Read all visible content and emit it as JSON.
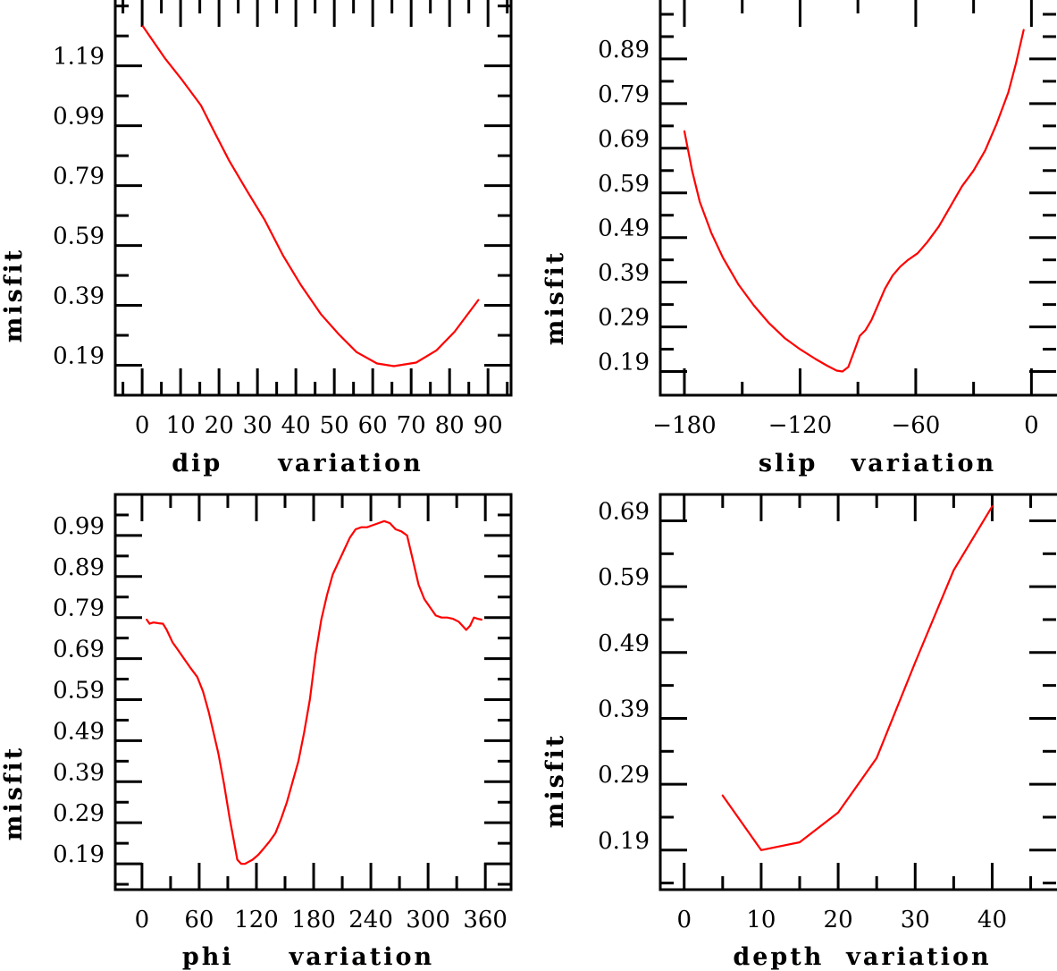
{
  "colors": {
    "series": "#ff0000",
    "axes": "#000000",
    "background": "#ffffff"
  },
  "chart_data": [
    {
      "type": "line",
      "xlabel": "dip     variation",
      "ylabel": "misfit",
      "xlim": [
        -7,
        96
      ],
      "ylim": [
        0.09,
        1.41
      ],
      "xticks": [
        0,
        10,
        20,
        30,
        40,
        50,
        60,
        70,
        80,
        90
      ],
      "xtick_labels": [
        "0",
        "10",
        "20",
        "30",
        "40",
        "50",
        "60",
        "70",
        "80",
        "90"
      ],
      "xminor_step": 5,
      "yticks": [
        0.19,
        0.39,
        0.59,
        0.79,
        0.99,
        1.19
      ],
      "ytick_labels": [
        "0.19",
        "0.39",
        "0.59",
        "0.79",
        "0.99",
        "1.19"
      ],
      "yminor_step": 0.1,
      "grid": false,
      "series": [
        {
          "name": "misfit",
          "x": [
            0.2,
            6,
            10.2,
            15.3,
            18.8,
            22.7,
            27.3,
            31.9,
            36.6,
            41.2,
            46.5,
            51.2,
            55.8,
            61.1,
            65.5,
            71.3,
            76.6,
            81.3,
            87.5
          ],
          "y": [
            1.322,
            1.214,
            1.146,
            1.058,
            0.969,
            0.872,
            0.772,
            0.675,
            0.558,
            0.46,
            0.361,
            0.293,
            0.234,
            0.196,
            0.187,
            0.199,
            0.24,
            0.302,
            0.408
          ]
        }
      ]
    },
    {
      "type": "line",
      "xlabel": "slip   variation",
      "ylabel": "misfit",
      "xlim": [
        -192.5,
        12.8
      ],
      "ylim": [
        0.137,
        1.022
      ],
      "xticks": [
        -180,
        -120,
        -60,
        0
      ],
      "xtick_labels": [
        "−180",
        "−120",
        "−60",
        "0"
      ],
      "xminor_step": 30,
      "yticks": [
        0.19,
        0.29,
        0.39,
        0.49,
        0.59,
        0.69,
        0.79,
        0.89
      ],
      "ytick_labels": [
        "0.19",
        "0.29",
        "0.39",
        "0.49",
        "0.59",
        "0.69",
        "0.79",
        "0.89"
      ],
      "yminor_step": 0.05,
      "grid": false,
      "series": [
        {
          "name": "misfit",
          "x": [
            -180,
            -176,
            -172,
            -166,
            -160,
            -152,
            -144,
            -136,
            -128,
            -120,
            -112,
            -106,
            -101,
            -98,
            -95,
            -92,
            -89,
            -86,
            -83,
            -80,
            -76,
            -72,
            -68,
            -64,
            -59,
            -54,
            -48,
            -42,
            -36,
            -30,
            -24,
            -18,
            -12,
            -8,
            -4
          ],
          "y": [
            0.728,
            0.64,
            0.57,
            0.5,
            0.445,
            0.385,
            0.338,
            0.298,
            0.265,
            0.24,
            0.218,
            0.203,
            0.192,
            0.19,
            0.2,
            0.235,
            0.27,
            0.283,
            0.305,
            0.335,
            0.375,
            0.405,
            0.425,
            0.44,
            0.455,
            0.48,
            0.515,
            0.56,
            0.605,
            0.64,
            0.685,
            0.745,
            0.815,
            0.88,
            0.955
          ]
        }
      ]
    },
    {
      "type": "line",
      "xlabel": "phi     variation",
      "ylabel": "misfit",
      "xlim": [
        -28,
        387
      ],
      "ylim": [
        0.127,
        1.09
      ],
      "xticks": [
        0,
        60,
        120,
        180,
        240,
        300,
        360
      ],
      "xtick_labels": [
        "0",
        "60",
        "120",
        "180",
        "240",
        "300",
        "360"
      ],
      "xminor_step": 30,
      "yticks": [
        0.19,
        0.29,
        0.39,
        0.49,
        0.59,
        0.69,
        0.79,
        0.89,
        0.99
      ],
      "ytick_labels": [
        "0.19",
        "0.29",
        "0.39",
        "0.49",
        "0.59",
        "0.69",
        "0.79",
        "0.89",
        "0.99"
      ],
      "yminor_step": 0.05,
      "grid": false,
      "series": [
        {
          "name": "misfit",
          "x": [
            5,
            8,
            12,
            18,
            22,
            26,
            32,
            38,
            44,
            50,
            58,
            64,
            70,
            76,
            80,
            86,
            92,
            96,
            100,
            104,
            108,
            112,
            116,
            122,
            128,
            134,
            140,
            146,
            152,
            158,
            164,
            170,
            176,
            182,
            188,
            194,
            200,
            206,
            212,
            218,
            224,
            230,
            236,
            242,
            248,
            254,
            260,
            266,
            272,
            278,
            284,
            290,
            296,
            302,
            308,
            314,
            320,
            326,
            332,
            336,
            340,
            344,
            348,
            352,
            356
          ],
          "y": [
            0.785,
            0.775,
            0.778,
            0.776,
            0.775,
            0.76,
            0.73,
            0.71,
            0.69,
            0.67,
            0.645,
            0.61,
            0.56,
            0.5,
            0.46,
            0.385,
            0.3,
            0.25,
            0.2,
            0.19,
            0.19,
            0.195,
            0.2,
            0.212,
            0.228,
            0.245,
            0.265,
            0.3,
            0.34,
            0.39,
            0.44,
            0.51,
            0.59,
            0.7,
            0.785,
            0.845,
            0.895,
            0.925,
            0.955,
            0.985,
            1.005,
            1.01,
            1.01,
            1.015,
            1.02,
            1.025,
            1.02,
            1.005,
            1.0,
            0.99,
            0.93,
            0.87,
            0.835,
            0.815,
            0.795,
            0.79,
            0.79,
            0.787,
            0.78,
            0.77,
            0.76,
            0.77,
            0.79,
            0.787,
            0.785
          ]
        }
      ]
    },
    {
      "type": "line",
      "xlabel": "depth  variation",
      "ylabel": "misfit",
      "xlim": [
        -3.1,
        48.3
      ],
      "ylim": [
        0.13,
        0.73
      ],
      "xticks": [
        0,
        10,
        20,
        30,
        40
      ],
      "xtick_labels": [
        "0",
        "10",
        "20",
        "30",
        "40"
      ],
      "xminor_step": 5,
      "yticks": [
        0.19,
        0.29,
        0.39,
        0.49,
        0.59,
        0.69
      ],
      "ytick_labels": [
        "0.19",
        "0.29",
        "0.39",
        "0.49",
        "0.59",
        "0.69"
      ],
      "yminor_step": 0.05,
      "grid": false,
      "series": [
        {
          "name": "misfit",
          "x": [
            5,
            10,
            15,
            20,
            25,
            30,
            35,
            40
          ],
          "y": [
            0.273,
            0.19,
            0.202,
            0.247,
            0.33,
            0.475,
            0.615,
            0.712
          ]
        }
      ]
    }
  ]
}
